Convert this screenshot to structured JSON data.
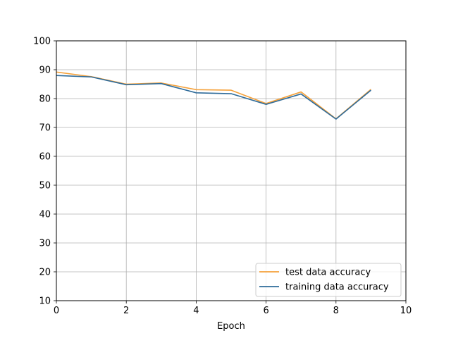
{
  "chart_data": {
    "type": "line",
    "title": "",
    "xlabel": "Epoch",
    "ylabel": "",
    "xlim": [
      0,
      10
    ],
    "ylim": [
      10,
      100
    ],
    "xticks": [
      0,
      2,
      4,
      6,
      8,
      10
    ],
    "yticks": [
      10,
      20,
      30,
      40,
      50,
      60,
      70,
      80,
      90,
      100
    ],
    "grid": true,
    "legend_position": "lower-right",
    "x": [
      0,
      1,
      2,
      3,
      4,
      5,
      6,
      7,
      8,
      9
    ],
    "series": [
      {
        "name": "test data accuracy",
        "color": "#f5a13a",
        "values": [
          89.2,
          87.6,
          85.0,
          85.4,
          83.1,
          82.9,
          78.3,
          82.3,
          73.0,
          83.2
        ]
      },
      {
        "name": "training data accuracy",
        "color": "#2e6b9a",
        "values": [
          88.0,
          87.5,
          84.8,
          85.2,
          82.0,
          81.7,
          78.0,
          81.6,
          72.9,
          82.9
        ]
      }
    ]
  }
}
